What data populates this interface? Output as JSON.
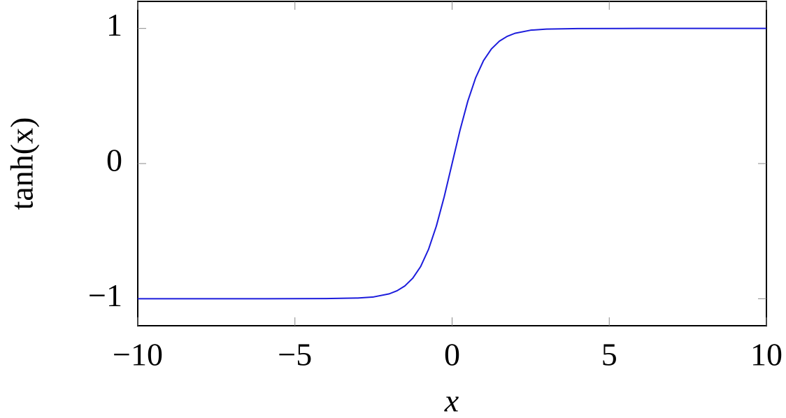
{
  "chart_data": {
    "type": "line",
    "xlabel": "x",
    "ylabel": "tanh(x)",
    "x": [
      -10,
      -8,
      -6,
      -4,
      -3,
      -2.5,
      -2,
      -1.75,
      -1.5,
      -1.25,
      -1,
      -0.75,
      -0.5,
      -0.25,
      0,
      0.25,
      0.5,
      0.75,
      1,
      1.25,
      1.5,
      1.75,
      2,
      2.5,
      3,
      4,
      6,
      8,
      10
    ],
    "series": [
      {
        "color": "#1c1cdc",
        "values": [
          -1,
          -1,
          -1,
          -0.999,
          -0.995,
          -0.987,
          -0.964,
          -0.941,
          -0.905,
          -0.848,
          -0.762,
          -0.635,
          -0.462,
          -0.245,
          0,
          0.245,
          0.462,
          0.635,
          0.762,
          0.848,
          0.905,
          0.941,
          0.964,
          0.987,
          0.995,
          0.999,
          1,
          1,
          1
        ]
      }
    ],
    "xlim": [
      -10,
      10
    ],
    "ylim": [
      -1.2,
      1.2
    ],
    "xticks": [
      {
        "value": -10,
        "label": "−10"
      },
      {
        "value": -5,
        "label": "−5"
      },
      0,
      5,
      10
    ],
    "yticks": [
      {
        "value": -1,
        "label": "−1"
      },
      0,
      1
    ],
    "grid": false
  }
}
